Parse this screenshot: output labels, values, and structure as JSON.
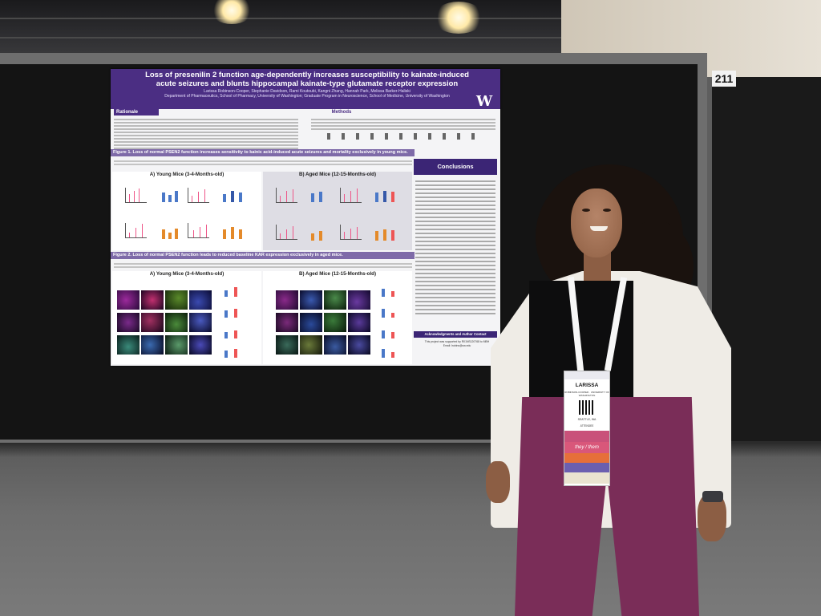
{
  "scene": {
    "booth_number": "211"
  },
  "poster": {
    "title": "Loss of presenilin 2 function age-dependently increases susceptibility to kainate-induced acute seizures and blunts hippocampal kainate-type glutamate receptor expression",
    "authors": "Larissa Robinson-Cooper, Stephanie Davidson, Rami Koutoubi, Kangni Zhang, Hannah Park, Melissa Barker-Haliski",
    "affiliations": "Department of Pharmaceutics, School of Pharmacy, University of Washington; Graduate Program in Neuroscience, School of Medicine, University of Washington",
    "logo": "W",
    "sections": {
      "rationale": "Rationale",
      "methods": "Methods",
      "conclusions": "Conclusions",
      "acknowledgments": "Acknowledgments and Author Contact"
    },
    "figure1_title": "Figure 1. Loss of normal PSEN2 function increases sensitivity to kainic acid-induced acute seizures and mortality exclusively in young mice.",
    "figure2_title": "Figure 2. Loss of normal PSEN2 function leads to reduced baseline KAR expression exclusively in aged mice.",
    "panel_young": "A) Young Mice (3-4-Months-old)",
    "panel_aged": "B) Aged Mice (12-15-Months-old)",
    "ack_text": "This project was supported by R01NS120768 to MBH",
    "email": "Email: lrobins@uw.edu"
  },
  "badge": {
    "name": "LARISSA",
    "org": "ROBINSON-COOPER · UNIVERSITY OF WASHINGTON",
    "location": "SEATTLE, WA",
    "role": "ATTENDEE",
    "pronoun_ribbon": "they / them"
  },
  "colors": {
    "poster_purple": "#4b2e83",
    "poster_lavender": "#7e6aa8",
    "pants": "#7a2d58",
    "blazer": "#efece6"
  }
}
